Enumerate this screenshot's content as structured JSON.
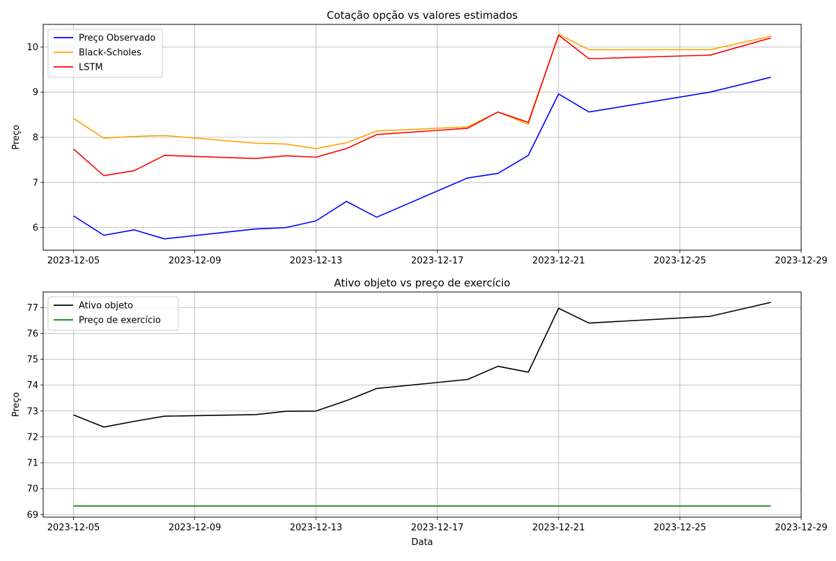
{
  "chart_data": [
    {
      "type": "line",
      "title": "Cotação opção vs valores estimados",
      "xlabel": "",
      "ylabel": "Preço",
      "xlim": [
        "2023-12-04",
        "2023-12-29"
      ],
      "ylim": [
        5.5,
        10.5
      ],
      "xticks": [
        "2023-12-05",
        "2023-12-09",
        "2023-12-13",
        "2023-12-17",
        "2023-12-21",
        "2023-12-25",
        "2023-12-29"
      ],
      "yticks": [
        6,
        7,
        8,
        9,
        10
      ],
      "grid": true,
      "legend_position": "top-left",
      "series": [
        {
          "name": "Preço Observado",
          "color": "#0000ff",
          "x": [
            "2023-12-05",
            "2023-12-06",
            "2023-12-07",
            "2023-12-08",
            "2023-12-11",
            "2023-12-12",
            "2023-12-13",
            "2023-12-14",
            "2023-12-15",
            "2023-12-18",
            "2023-12-19",
            "2023-12-20",
            "2023-12-21",
            "2023-12-22",
            "2023-12-26",
            "2023-12-28"
          ],
          "values": [
            6.26,
            5.83,
            5.95,
            5.75,
            5.97,
            6.0,
            6.15,
            6.58,
            6.23,
            7.1,
            7.2,
            7.6,
            8.96,
            8.56,
            9.0,
            9.33
          ]
        },
        {
          "name": "Black-Scholes",
          "color": "#ffa500",
          "x": [
            "2023-12-05",
            "2023-12-06",
            "2023-12-07",
            "2023-12-08",
            "2023-12-11",
            "2023-12-12",
            "2023-12-13",
            "2023-12-14",
            "2023-12-15",
            "2023-12-18",
            "2023-12-19",
            "2023-12-20",
            "2023-12-21",
            "2023-12-22",
            "2023-12-26",
            "2023-12-28"
          ],
          "values": [
            8.42,
            7.98,
            8.02,
            8.04,
            7.87,
            7.85,
            7.75,
            7.88,
            8.14,
            8.23,
            8.56,
            8.29,
            10.28,
            9.94,
            9.94,
            10.24
          ]
        },
        {
          "name": "LSTM",
          "color": "#ff0000",
          "x": [
            "2023-12-05",
            "2023-12-06",
            "2023-12-07",
            "2023-12-08",
            "2023-12-11",
            "2023-12-12",
            "2023-12-13",
            "2023-12-14",
            "2023-12-15",
            "2023-12-18",
            "2023-12-19",
            "2023-12-20",
            "2023-12-21",
            "2023-12-22",
            "2023-12-26",
            "2023-12-28"
          ],
          "values": [
            7.74,
            7.15,
            7.26,
            7.6,
            7.53,
            7.59,
            7.56,
            7.75,
            8.06,
            8.2,
            8.56,
            8.33,
            10.26,
            9.74,
            9.82,
            10.2
          ]
        }
      ]
    },
    {
      "type": "line",
      "title": "Ativo objeto vs preço de exercício",
      "xlabel": "Data",
      "ylabel": "Preço",
      "xlim": [
        "2023-12-04",
        "2023-12-29"
      ],
      "ylim": [
        68.9,
        77.6
      ],
      "xticks": [
        "2023-12-05",
        "2023-12-09",
        "2023-12-13",
        "2023-12-17",
        "2023-12-21",
        "2023-12-25",
        "2023-12-29"
      ],
      "yticks": [
        69,
        70,
        71,
        72,
        73,
        74,
        75,
        76,
        77
      ],
      "grid": true,
      "legend_position": "top-left",
      "series": [
        {
          "name": "Ativo objeto",
          "color": "#000000",
          "x": [
            "2023-12-05",
            "2023-12-06",
            "2023-12-07",
            "2023-12-08",
            "2023-12-11",
            "2023-12-12",
            "2023-12-13",
            "2023-12-14",
            "2023-12-15",
            "2023-12-18",
            "2023-12-19",
            "2023-12-20",
            "2023-12-21",
            "2023-12-22",
            "2023-12-26",
            "2023-12-28"
          ],
          "values": [
            72.85,
            72.38,
            72.6,
            72.8,
            72.86,
            72.99,
            73.0,
            73.4,
            73.87,
            74.22,
            74.73,
            74.5,
            76.97,
            76.4,
            76.66,
            77.2
          ]
        },
        {
          "name": "Preço de exercício",
          "color": "#008000",
          "x": [
            "2023-12-05",
            "2023-12-28"
          ],
          "values": [
            69.33,
            69.33
          ]
        }
      ]
    }
  ]
}
